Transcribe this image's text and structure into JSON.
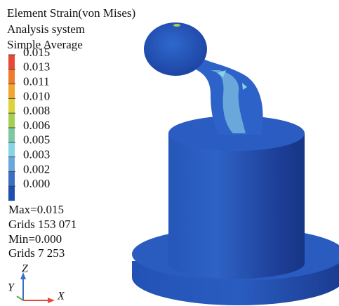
{
  "header": {
    "lines": [
      "Element Strain(von Mises)",
      "Analysis system",
      "Simple Average"
    ]
  },
  "legend": {
    "levels": [
      {
        "label": "0.015",
        "color": "#e8483a"
      },
      {
        "label": "0.013",
        "color": "#ee7a2c"
      },
      {
        "label": "0.011",
        "color": "#f2a531"
      },
      {
        "label": "0.010",
        "color": "#d9d43a"
      },
      {
        "label": "0.008",
        "color": "#a6cf52"
      },
      {
        "label": "0.006",
        "color": "#7cc8a0"
      },
      {
        "label": "0.005",
        "color": "#86d4e6"
      },
      {
        "label": "0.003",
        "color": "#6aa8dc"
      },
      {
        "label": "0.002",
        "color": "#3a6fc4"
      },
      {
        "label": "0.000",
        "color": "#1f4fae"
      }
    ]
  },
  "stats": [
    "Max=0.015",
    "Grids 153 071",
    "Min=0.000",
    "Grids 7 253"
  ],
  "axes": {
    "z": "Z",
    "y": "Y",
    "x": "X"
  }
}
